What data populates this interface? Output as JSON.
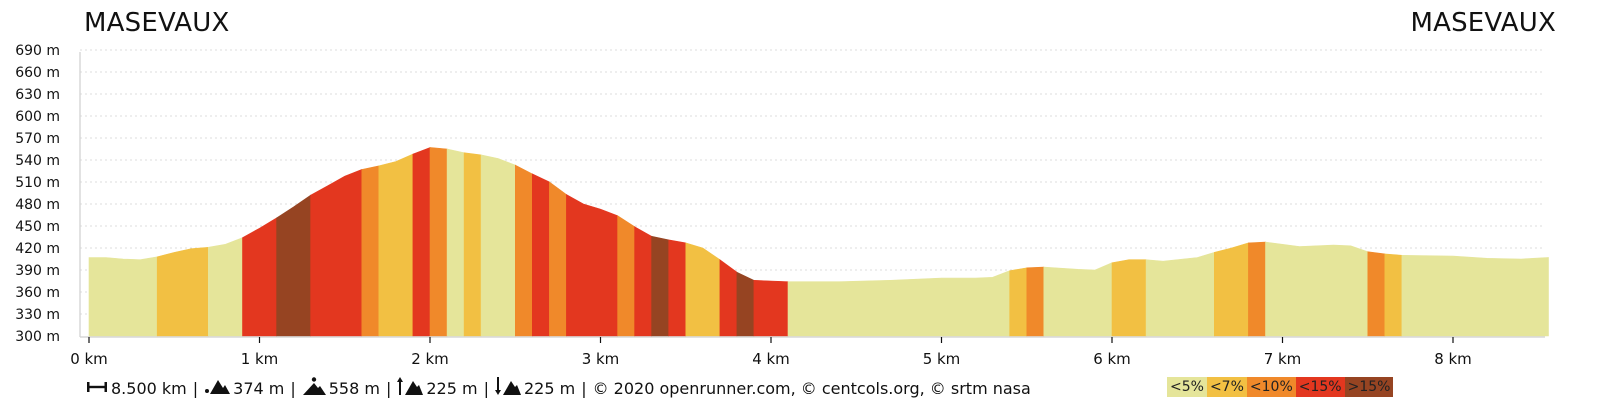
{
  "labels": {
    "start": "MASEVAUX",
    "end": "MASEVAUX"
  },
  "stats": [
    {
      "icon": "distance-icon",
      "value": "8.500 km"
    },
    {
      "icon": "min-altitude-icon",
      "value": "374 m"
    },
    {
      "icon": "max-altitude-icon",
      "value": "558 m"
    },
    {
      "icon": "ascent-icon",
      "value": "225 m"
    },
    {
      "icon": "descent-icon",
      "value": "225 m"
    }
  ],
  "credits": "© 2020 openrunner.com, © centcols.org, © srtm nasa",
  "legend": [
    {
      "label": "<5%",
      "color": "#e5e59a"
    },
    {
      "label": "<7%",
      "color": "#f2c043"
    },
    {
      "label": "<10%",
      "color": "#f0892a"
    },
    {
      "label": "<15%",
      "color": "#e3371f"
    },
    {
      "label": ">15%",
      "color": "#964422"
    }
  ],
  "chart_data": {
    "type": "area",
    "x_ticks": [
      "0 km",
      "1 km",
      "2 km",
      "3 km",
      "4 km",
      "5 km",
      "6 km",
      "7 km",
      "8 km"
    ],
    "y_ticks": [
      "300 m",
      "330 m",
      "360 m",
      "390 m",
      "420 m",
      "450 m",
      "480 m",
      "510 m",
      "540 m",
      "570 m",
      "600 m",
      "630 m",
      "660 m",
      "690 m"
    ],
    "xlim": [
      0,
      8.56
    ],
    "ylim": [
      300,
      690
    ],
    "grid": true,
    "profile": [
      [
        0.0,
        407
      ],
      [
        0.1,
        407
      ],
      [
        0.2,
        405
      ],
      [
        0.3,
        404
      ],
      [
        0.4,
        408
      ],
      [
        0.5,
        414
      ],
      [
        0.6,
        419
      ],
      [
        0.7,
        421
      ],
      [
        0.8,
        425
      ],
      [
        0.9,
        434
      ],
      [
        1.0,
        447
      ],
      [
        1.1,
        461
      ],
      [
        1.2,
        476
      ],
      [
        1.3,
        492
      ],
      [
        1.4,
        505
      ],
      [
        1.5,
        518
      ],
      [
        1.6,
        527
      ],
      [
        1.7,
        532
      ],
      [
        1.8,
        538
      ],
      [
        1.9,
        548
      ],
      [
        2.0,
        557
      ],
      [
        2.1,
        555
      ],
      [
        2.2,
        550
      ],
      [
        2.3,
        547
      ],
      [
        2.4,
        542
      ],
      [
        2.5,
        533
      ],
      [
        2.6,
        521
      ],
      [
        2.7,
        510
      ],
      [
        2.8,
        493
      ],
      [
        2.9,
        480
      ],
      [
        3.0,
        473
      ],
      [
        3.1,
        464
      ],
      [
        3.2,
        449
      ],
      [
        3.3,
        436
      ],
      [
        3.4,
        431
      ],
      [
        3.5,
        427
      ],
      [
        3.6,
        420
      ],
      [
        3.7,
        404
      ],
      [
        3.8,
        387
      ],
      [
        3.9,
        376
      ],
      [
        4.0,
        375
      ],
      [
        4.1,
        374
      ],
      [
        4.4,
        374
      ],
      [
        4.7,
        376
      ],
      [
        5.0,
        379
      ],
      [
        5.2,
        379
      ],
      [
        5.3,
        380
      ],
      [
        5.4,
        389
      ],
      [
        5.5,
        393
      ],
      [
        5.6,
        394
      ],
      [
        5.8,
        391
      ],
      [
        5.9,
        390
      ],
      [
        6.0,
        400
      ],
      [
        6.1,
        404
      ],
      [
        6.2,
        404
      ],
      [
        6.3,
        402
      ],
      [
        6.5,
        407
      ],
      [
        6.6,
        414
      ],
      [
        6.7,
        420
      ],
      [
        6.8,
        427
      ],
      [
        6.9,
        428
      ],
      [
        7.0,
        425
      ],
      [
        7.1,
        422
      ],
      [
        7.2,
        423
      ],
      [
        7.3,
        424
      ],
      [
        7.4,
        423
      ],
      [
        7.5,
        415
      ],
      [
        7.6,
        412
      ],
      [
        7.7,
        410
      ],
      [
        8.0,
        409
      ],
      [
        8.2,
        406
      ],
      [
        8.4,
        405
      ],
      [
        8.56,
        407
      ]
    ],
    "segments": [
      {
        "from": 0.0,
        "to": 0.4,
        "grade": "<5%"
      },
      {
        "from": 0.4,
        "to": 0.7,
        "grade": "<7%"
      },
      {
        "from": 0.7,
        "to": 0.9,
        "grade": "<5%"
      },
      {
        "from": 0.9,
        "to": 1.1,
        "grade": "<15%"
      },
      {
        "from": 1.1,
        "to": 1.3,
        "grade": ">15%"
      },
      {
        "from": 1.3,
        "to": 1.6,
        "grade": "<15%"
      },
      {
        "from": 1.6,
        "to": 1.7,
        "grade": "<10%"
      },
      {
        "from": 1.7,
        "to": 1.9,
        "grade": "<7%"
      },
      {
        "from": 1.9,
        "to": 2.0,
        "grade": "<15%"
      },
      {
        "from": 2.0,
        "to": 2.1,
        "grade": "<10%"
      },
      {
        "from": 2.1,
        "to": 2.2,
        "grade": "<5%"
      },
      {
        "from": 2.2,
        "to": 2.3,
        "grade": "<7%"
      },
      {
        "from": 2.3,
        "to": 2.5,
        "grade": "<5%"
      },
      {
        "from": 2.5,
        "to": 2.6,
        "grade": "<10%"
      },
      {
        "from": 2.6,
        "to": 2.7,
        "grade": "<15%"
      },
      {
        "from": 2.7,
        "to": 2.8,
        "grade": "<10%"
      },
      {
        "from": 2.8,
        "to": 3.1,
        "grade": "<15%"
      },
      {
        "from": 3.1,
        "to": 3.2,
        "grade": "<10%"
      },
      {
        "from": 3.2,
        "to": 3.3,
        "grade": "<15%"
      },
      {
        "from": 3.3,
        "to": 3.4,
        "grade": ">15%"
      },
      {
        "from": 3.4,
        "to": 3.5,
        "grade": "<15%"
      },
      {
        "from": 3.5,
        "to": 3.7,
        "grade": "<7%"
      },
      {
        "from": 3.7,
        "to": 3.8,
        "grade": "<15%"
      },
      {
        "from": 3.8,
        "to": 3.9,
        "grade": ">15%"
      },
      {
        "from": 3.9,
        "to": 4.1,
        "grade": "<15%"
      },
      {
        "from": 4.1,
        "to": 5.4,
        "grade": "<5%"
      },
      {
        "from": 5.4,
        "to": 5.5,
        "grade": "<7%"
      },
      {
        "from": 5.5,
        "to": 5.6,
        "grade": "<10%"
      },
      {
        "from": 5.6,
        "to": 6.0,
        "grade": "<5%"
      },
      {
        "from": 6.0,
        "to": 6.2,
        "grade": "<7%"
      },
      {
        "from": 6.2,
        "to": 6.6,
        "grade": "<5%"
      },
      {
        "from": 6.6,
        "to": 6.8,
        "grade": "<7%"
      },
      {
        "from": 6.8,
        "to": 6.9,
        "grade": "<10%"
      },
      {
        "from": 6.9,
        "to": 7.5,
        "grade": "<5%"
      },
      {
        "from": 7.5,
        "to": 7.6,
        "grade": "<10%"
      },
      {
        "from": 7.6,
        "to": 7.7,
        "grade": "<7%"
      },
      {
        "from": 7.7,
        "to": 8.56,
        "grade": "<5%"
      }
    ]
  }
}
